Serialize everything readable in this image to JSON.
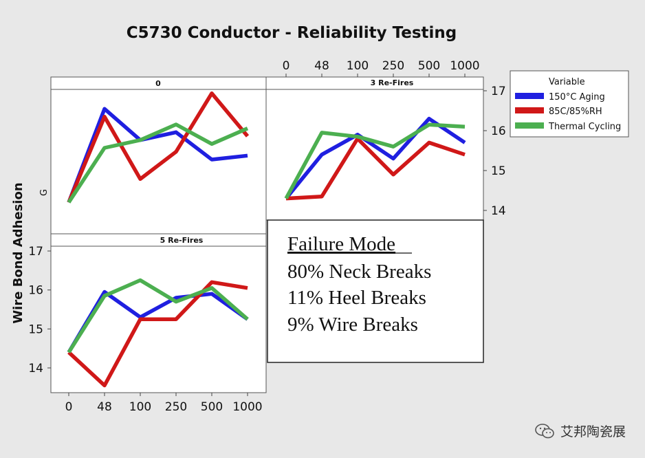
{
  "chart_data": {
    "type": "line",
    "title": "C5730 Conductor - Reliability Testing",
    "ylabel": "Wire Bond Adhesion",
    "panel_ylabel": "G",
    "categories": [
      "0",
      "48",
      "100",
      "250",
      "500",
      "1000"
    ],
    "ylim": [
      13.5,
      17.2
    ],
    "yticks": [
      14,
      15,
      16,
      17
    ],
    "legend": {
      "title": "Variable",
      "placement": "top-right",
      "entries": [
        "150°C Aging",
        "85C/85%RH",
        "Thermal Cycling"
      ]
    },
    "colors": {
      "150°C Aging": "#1f1fe0",
      "85C/85%RH": "#d01818",
      "Thermal Cycling": "#4caf50"
    },
    "panels": [
      {
        "label": "0",
        "series": [
          {
            "name": "150°C Aging",
            "values": [
              14.1,
              16.5,
              15.7,
              15.9,
              15.2,
              15.3
            ]
          },
          {
            "name": "85C/85%RH",
            "values": [
              14.1,
              16.3,
              14.7,
              15.4,
              16.9,
              15.8
            ]
          },
          {
            "name": "Thermal Cycling",
            "values": [
              14.1,
              15.5,
              15.7,
              16.1,
              15.6,
              16.0
            ]
          }
        ]
      },
      {
        "label": "3 Re-Fires",
        "series": [
          {
            "name": "150°C Aging",
            "values": [
              14.3,
              15.4,
              15.9,
              15.3,
              16.3,
              15.7
            ]
          },
          {
            "name": "85C/85%RH",
            "values": [
              14.3,
              14.35,
              15.8,
              14.9,
              15.7,
              15.4
            ]
          },
          {
            "name": "Thermal Cycling",
            "values": [
              14.3,
              15.95,
              15.85,
              15.6,
              16.15,
              16.1
            ]
          }
        ]
      },
      {
        "label": "5 Re-Fires",
        "series": [
          {
            "name": "150°C Aging",
            "values": [
              14.4,
              15.95,
              15.3,
              15.8,
              15.9,
              15.25
            ]
          },
          {
            "name": "85C/85%RH",
            "values": [
              14.4,
              13.55,
              15.25,
              15.25,
              16.2,
              16.05
            ]
          },
          {
            "name": "Thermal Cycling",
            "values": [
              14.4,
              15.85,
              16.25,
              15.7,
              16.05,
              15.25
            ]
          }
        ]
      }
    ],
    "annotation": {
      "title": "Failure Mode",
      "lines": [
        "80% Neck Breaks",
        "11% Heel Breaks",
        "9% Wire Breaks"
      ]
    }
  },
  "watermark": "艾邦陶瓷展"
}
